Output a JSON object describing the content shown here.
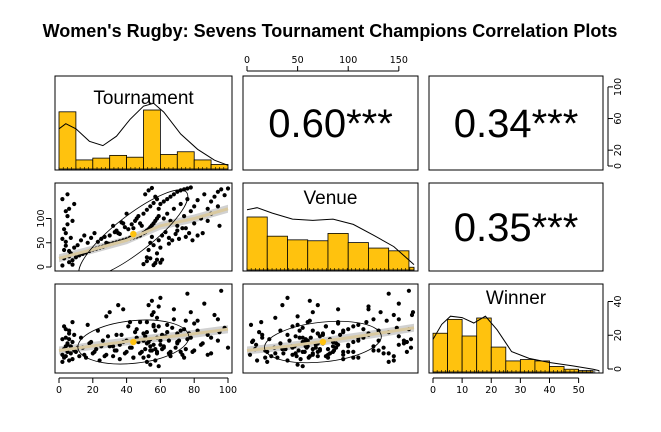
{
  "title": "Women's Rugby: Sevens Tournament Champions Correlation Plots",
  "colors": {
    "bar_fill": "#FFC20E",
    "bar_stroke": "#000000",
    "point": "#000000",
    "smooth": "#D9C9A0",
    "band": "#BDBDBD",
    "centroid": "#FFC20E"
  },
  "chart_data": {
    "type": "scatter",
    "variables": [
      "Tournament",
      "Venue",
      "Winner"
    ],
    "ranges": {
      "Tournament": [
        0,
        100
      ],
      "Venue": [
        0,
        165
      ],
      "Winner": [
        0,
        57
      ]
    },
    "axis_ticks": {
      "Tournament": [
        "0",
        "20",
        "40",
        "60",
        "80",
        "100"
      ],
      "Venue": [
        "0",
        "50",
        "100",
        "150"
      ],
      "Winner": [
        "0",
        "10",
        "20",
        "30",
        "40",
        "50"
      ],
      "tournament_hist_right": [
        "0",
        "20",
        "60",
        "100"
      ],
      "tournament_scatter_left": [
        "0",
        "50",
        "100"
      ],
      "winner_hist_right": [
        "0",
        "20",
        "40"
      ]
    },
    "correlations": [
      {
        "row": 0,
        "col": 1,
        "label": "0.60***"
      },
      {
        "row": 0,
        "col": 2,
        "label": "0.34***"
      },
      {
        "row": 1,
        "col": 2,
        "label": "0.35***"
      }
    ],
    "histograms": {
      "Tournament": {
        "bin_edges": [
          0,
          10,
          20,
          30,
          40,
          50,
          60,
          70,
          80,
          90,
          100
        ],
        "counts": [
          63,
          10,
          12,
          15,
          13,
          65,
          16,
          19,
          10,
          5
        ]
      },
      "Venue": {
        "bin_edges": [
          0,
          20,
          40,
          60,
          80,
          100,
          120,
          140,
          160,
          165
        ],
        "counts": [
          58,
          37,
          33,
          32,
          40,
          30,
          24,
          21,
          3
        ]
      },
      "Winner": {
        "bin_edges": [
          0,
          5,
          10,
          15,
          20,
          25,
          30,
          35,
          40,
          45,
          50,
          55
        ],
        "counts": [
          28,
          38,
          26,
          39,
          18,
          8,
          9,
          8,
          4,
          2,
          1
        ]
      }
    },
    "density_shape": {
      "Tournament": [
        [
          0,
          0.55
        ],
        [
          4,
          0.62
        ],
        [
          10,
          0.55
        ],
        [
          18,
          0.38
        ],
        [
          26,
          0.32
        ],
        [
          34,
          0.45
        ],
        [
          42,
          0.68
        ],
        [
          50,
          0.86
        ],
        [
          56,
          0.9
        ],
        [
          62,
          0.78
        ],
        [
          72,
          0.48
        ],
        [
          82,
          0.27
        ],
        [
          92,
          0.12
        ],
        [
          100,
          0.05
        ]
      ],
      "Venue": [
        [
          0,
          0.9
        ],
        [
          10,
          0.93
        ],
        [
          25,
          0.85
        ],
        [
          45,
          0.76
        ],
        [
          65,
          0.74
        ],
        [
          85,
          0.76
        ],
        [
          105,
          0.68
        ],
        [
          125,
          0.52
        ],
        [
          145,
          0.35
        ],
        [
          165,
          0.08
        ]
      ],
      "Winner": [
        [
          0,
          0.48
        ],
        [
          3,
          0.7
        ],
        [
          6,
          0.82
        ],
        [
          10,
          0.8
        ],
        [
          14,
          0.72
        ],
        [
          18,
          0.82
        ],
        [
          22,
          0.62
        ],
        [
          27,
          0.3
        ],
        [
          33,
          0.2
        ],
        [
          40,
          0.14
        ],
        [
          48,
          0.09
        ],
        [
          55,
          0.04
        ],
        [
          57,
          0.02
        ]
      ]
    },
    "scatter_panels": [
      {
        "row": 1,
        "col": 0,
        "x_var": "Tournament",
        "y_var": "Venue"
      },
      {
        "row": 2,
        "col": 0,
        "x_var": "Tournament",
        "y_var": "Winner"
      },
      {
        "row": 2,
        "col": 1,
        "x_var": "Venue",
        "y_var": "Winner"
      }
    ],
    "points": [
      [
        2,
        3,
        10
      ],
      [
        3,
        18,
        8
      ],
      [
        3,
        35,
        14
      ],
      [
        4,
        52,
        22
      ],
      [
        4,
        70,
        9
      ],
      [
        5,
        88,
        18
      ],
      [
        5,
        105,
        12
      ],
      [
        6,
        10,
        6
      ],
      [
        6,
        120,
        25
      ],
      [
        7,
        28,
        11
      ],
      [
        7,
        60,
        16
      ],
      [
        8,
        5,
        19
      ],
      [
        8,
        95,
        7
      ],
      [
        9,
        40,
        24
      ],
      [
        9,
        130,
        13
      ],
      [
        2,
        140,
        5
      ],
      [
        3,
        78,
        30
      ],
      [
        5,
        150,
        17
      ],
      [
        6,
        22,
        21
      ],
      [
        4,
        115,
        28
      ],
      [
        10,
        20,
        12
      ],
      [
        12,
        24,
        9
      ],
      [
        14,
        27,
        15
      ],
      [
        16,
        30,
        8
      ],
      [
        18,
        33,
        18
      ],
      [
        20,
        36,
        11
      ],
      [
        22,
        38,
        14
      ],
      [
        24,
        40,
        6
      ],
      [
        26,
        42,
        20
      ],
      [
        28,
        45,
        10
      ],
      [
        30,
        47,
        16
      ],
      [
        32,
        49,
        9
      ],
      [
        34,
        51,
        13
      ],
      [
        36,
        53,
        7
      ],
      [
        38,
        55,
        19
      ],
      [
        40,
        57,
        12
      ],
      [
        42,
        59,
        15
      ],
      [
        44,
        61,
        8
      ],
      [
        46,
        63,
        22
      ],
      [
        48,
        65,
        11
      ],
      [
        50,
        70,
        25
      ],
      [
        51,
        72,
        14
      ],
      [
        52,
        75,
        18
      ],
      [
        53,
        78,
        9
      ],
      [
        54,
        82,
        21
      ],
      [
        55,
        86,
        13
      ],
      [
        56,
        90,
        17
      ],
      [
        57,
        95,
        27
      ],
      [
        58,
        100,
        12
      ],
      [
        59,
        105,
        30
      ],
      [
        50,
        110,
        8
      ],
      [
        52,
        118,
        33
      ],
      [
        54,
        125,
        16
      ],
      [
        56,
        132,
        40
      ],
      [
        58,
        140,
        11
      ],
      [
        51,
        150,
        23
      ],
      [
        53,
        158,
        19
      ],
      [
        55,
        163,
        38
      ],
      [
        57,
        145,
        6
      ],
      [
        59,
        120,
        44
      ],
      [
        60,
        130,
        20
      ],
      [
        62,
        135,
        15
      ],
      [
        64,
        140,
        26
      ],
      [
        66,
        145,
        9
      ],
      [
        68,
        150,
        35
      ],
      [
        70,
        155,
        18
      ],
      [
        72,
        158,
        12
      ],
      [
        74,
        160,
        28
      ],
      [
        76,
        162,
        21
      ],
      [
        78,
        164,
        40
      ],
      [
        52,
        20,
        5
      ],
      [
        53,
        35,
        45
      ],
      [
        54,
        50,
        3
      ],
      [
        55,
        62,
        48
      ],
      [
        56,
        45,
        30
      ],
      [
        57,
        8,
        14
      ],
      [
        58,
        28,
        36
      ],
      [
        59,
        55,
        2
      ],
      [
        60,
        40,
        50
      ],
      [
        61,
        15,
        24
      ],
      [
        62,
        100,
        16
      ],
      [
        64,
        110,
        31
      ],
      [
        66,
        95,
        12
      ],
      [
        68,
        120,
        42
      ],
      [
        70,
        85,
        19
      ],
      [
        72,
        130,
        27
      ],
      [
        74,
        105,
        8
      ],
      [
        76,
        140,
        53
      ],
      [
        78,
        115,
        22
      ],
      [
        80,
        125,
        13
      ],
      [
        82,
        138,
        34
      ],
      [
        84,
        100,
        17
      ],
      [
        86,
        150,
        46
      ],
      [
        88,
        120,
        24
      ],
      [
        90,
        135,
        11
      ],
      [
        92,
        145,
        38
      ],
      [
        94,
        155,
        20
      ],
      [
        96,
        160,
        55
      ],
      [
        98,
        148,
        29
      ],
      [
        100,
        162,
        15
      ],
      [
        65,
        60,
        20
      ],
      [
        70,
        75,
        25
      ],
      [
        75,
        80,
        14
      ],
      [
        80,
        90,
        32
      ],
      [
        85,
        70,
        18
      ],
      [
        90,
        110,
        22
      ],
      [
        95,
        85,
        26
      ],
      [
        88,
        95,
        10
      ],
      [
        82,
        65,
        27
      ],
      [
        94,
        125,
        35
      ],
      [
        35,
        70,
        45
      ],
      [
        38,
        90,
        42
      ],
      [
        40,
        110,
        20
      ],
      [
        42,
        60,
        33
      ],
      [
        44,
        80,
        8
      ],
      [
        46,
        100,
        28
      ],
      [
        30,
        65,
        40
      ],
      [
        32,
        85,
        16
      ],
      [
        34,
        75,
        24
      ],
      [
        28,
        50,
        37
      ],
      [
        11,
        45,
        15
      ],
      [
        13,
        55,
        22
      ],
      [
        15,
        65,
        10
      ],
      [
        17,
        50,
        31
      ],
      [
        19,
        60,
        19
      ],
      [
        21,
        70,
        12
      ],
      [
        23,
        52,
        27
      ],
      [
        25,
        58,
        16
      ],
      [
        27,
        62,
        9
      ],
      [
        29,
        48,
        23
      ],
      [
        48,
        90,
        33
      ],
      [
        47,
        105,
        19
      ],
      [
        49,
        85,
        12
      ],
      [
        45,
        95,
        26
      ],
      [
        43,
        88,
        15
      ],
      [
        41,
        78,
        30
      ],
      [
        39,
        82,
        11
      ],
      [
        37,
        92,
        24
      ],
      [
        36,
        68,
        17
      ],
      [
        33,
        72,
        13
      ],
      [
        61,
        65,
        14
      ],
      [
        63,
        72,
        23
      ],
      [
        65,
        48,
        11
      ],
      [
        67,
        55,
        29
      ],
      [
        69,
        68,
        15
      ],
      [
        71,
        58,
        20
      ],
      [
        73,
        80,
        10
      ],
      [
        75,
        62,
        34
      ],
      [
        77,
        70,
        25
      ],
      [
        79,
        55,
        12
      ],
      [
        50,
        6,
        20
      ],
      [
        52,
        12,
        26
      ],
      [
        54,
        18,
        13
      ],
      [
        56,
        4,
        31
      ],
      [
        58,
        15,
        22
      ],
      [
        60,
        9,
        17
      ],
      [
        8,
        14,
        33
      ],
      [
        6,
        33,
        27
      ],
      [
        4,
        44,
        16
      ],
      [
        2,
        58,
        21
      ]
    ],
    "loess": {
      "Tournament_vs_Venue": [
        [
          0,
          18
        ],
        [
          20,
          36
        ],
        [
          40,
          55
        ],
        [
          60,
          85
        ],
        [
          80,
          100
        ],
        [
          100,
          120
        ]
      ],
      "Tournament_vs_Winner": [
        [
          0,
          13
        ],
        [
          25,
          17
        ],
        [
          50,
          21
        ],
        [
          75,
          24
        ],
        [
          100,
          28
        ]
      ],
      "Venue_vs_Winner": [
        [
          0,
          13
        ],
        [
          40,
          16
        ],
        [
          80,
          20
        ],
        [
          120,
          24
        ],
        [
          165,
          29
        ]
      ]
    },
    "ellipses": {
      "Tournament_vs_Venue": {
        "center": [
          44,
          68
        ],
        "rx": 40,
        "ry": 38,
        "angle_deg": -38
      },
      "Tournament_vs_Winner": {
        "center": [
          44,
          19
        ],
        "rx": 33,
        "ry": 15,
        "angle_deg": -6
      },
      "Venue_vs_Winner": {
        "center": [
          75,
          19
        ],
        "rx": 58,
        "ry": 14,
        "angle_deg": -6
      }
    }
  }
}
